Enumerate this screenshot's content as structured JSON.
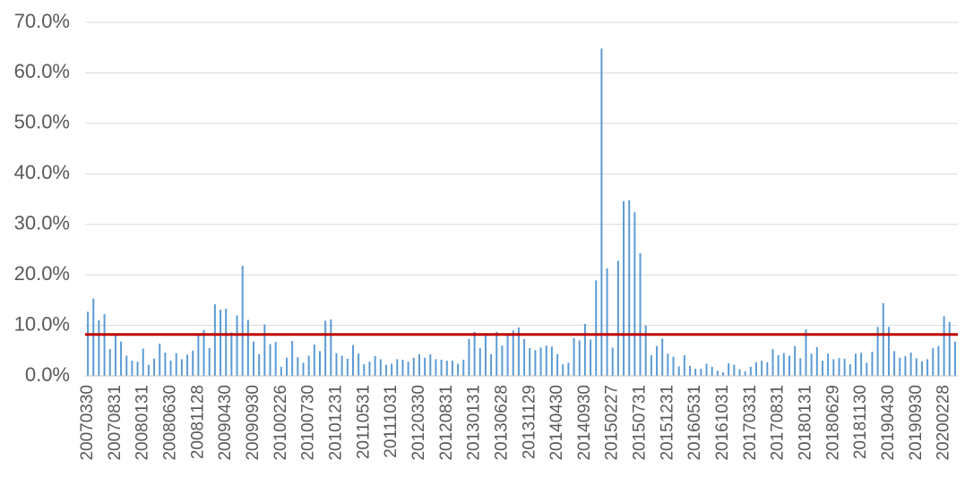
{
  "chart_data": {
    "type": "bar",
    "categories": [
      "20070330",
      null,
      null,
      null,
      null,
      "20070831",
      null,
      null,
      null,
      null,
      "20080131",
      null,
      null,
      null,
      null,
      "20080630",
      null,
      null,
      null,
      null,
      "20081128",
      null,
      null,
      null,
      null,
      "20090430",
      null,
      null,
      null,
      null,
      "20090930",
      null,
      null,
      null,
      null,
      "20100226",
      null,
      null,
      null,
      null,
      "20100730",
      null,
      null,
      null,
      null,
      "20101231",
      null,
      null,
      null,
      null,
      "20110531",
      null,
      null,
      null,
      null,
      "20111031",
      null,
      null,
      null,
      null,
      "20120330",
      null,
      null,
      null,
      null,
      "20120831",
      null,
      null,
      null,
      null,
      "20130131",
      null,
      null,
      null,
      null,
      "20130628",
      null,
      null,
      null,
      null,
      "20131129",
      null,
      null,
      null,
      null,
      "20140430",
      null,
      null,
      null,
      null,
      "20140930",
      null,
      null,
      null,
      null,
      "20150227",
      null,
      null,
      null,
      null,
      "20150731",
      null,
      null,
      null,
      null,
      "20151231",
      null,
      null,
      null,
      null,
      "20160531",
      null,
      null,
      null,
      null,
      "20161031",
      null,
      null,
      null,
      null,
      "20170331",
      null,
      null,
      null,
      null,
      "20170831",
      null,
      null,
      null,
      null,
      "20180131",
      null,
      null,
      null,
      null,
      "20180629",
      null,
      null,
      null,
      null,
      "20181130",
      null,
      null,
      null,
      null,
      "20190430",
      null,
      null,
      null,
      null,
      "20190930",
      null,
      null,
      null,
      null,
      "20200228",
      null,
      null
    ],
    "values": [
      12.7,
      15.3,
      11.0,
      12.2,
      5.3,
      8.0,
      6.8,
      4.0,
      3.0,
      2.8,
      5.4,
      2.2,
      3.4,
      6.4,
      4.6,
      3.0,
      4.5,
      3.3,
      4.2,
      5.0,
      8.0,
      9.1,
      5.5,
      14.2,
      13.1,
      13.3,
      8.6,
      12.0,
      21.8,
      11.1,
      6.8,
      4.3,
      10.2,
      6.3,
      6.7,
      1.8,
      3.6,
      6.9,
      3.7,
      2.6,
      4.0,
      6.2,
      4.9,
      10.9,
      11.2,
      4.5,
      4.0,
      3.4,
      6.1,
      4.4,
      2.3,
      2.8,
      3.9,
      3.3,
      2.2,
      2.4,
      3.3,
      3.2,
      2.8,
      3.6,
      4.3,
      3.6,
      4.3,
      3.3,
      3.2,
      3.0,
      3.0,
      2.4,
      3.2,
      7.3,
      8.7,
      5.5,
      8.0,
      4.3,
      8.7,
      6.0,
      8.0,
      9.0,
      9.6,
      7.3,
      5.5,
      5.1,
      5.6,
      6.0,
      5.8,
      4.3,
      2.3,
      2.6,
      7.5,
      7.0,
      10.3,
      7.2,
      18.9,
      64.8,
      21.3,
      5.6,
      22.8,
      34.6,
      34.8,
      32.4,
      24.3,
      10.0,
      4.1,
      5.9,
      7.4,
      4.4,
      3.8,
      1.9,
      4.1,
      2.0,
      1.4,
      1.4,
      2.4,
      1.8,
      1.0,
      0.7,
      2.5,
      2.2,
      1.3,
      0.9,
      1.8,
      2.7,
      3.0,
      2.7,
      5.3,
      4.1,
      4.5,
      4.0,
      5.9,
      3.5,
      9.2,
      4.4,
      5.7,
      3.0,
      4.4,
      3.3,
      3.5,
      3.4,
      2.3,
      4.4,
      4.6,
      2.6,
      4.8,
      9.7,
      14.4,
      9.7,
      4.9,
      3.6,
      3.9,
      4.6,
      3.5,
      2.9,
      3.3,
      5.5,
      5.9,
      11.8,
      10.7,
      6.8
    ],
    "color": "#5b9bd5",
    "reference_line": {
      "value": 8.2,
      "color": "#c00000"
    },
    "ylim": [
      0,
      70
    ],
    "yticks": [
      {
        "value": 0,
        "label": "0.0%"
      },
      {
        "value": 10,
        "label": "10.0%"
      },
      {
        "value": 20,
        "label": "20.0%"
      },
      {
        "value": 30,
        "label": "30.0%"
      },
      {
        "value": 40,
        "label": "40.0%"
      },
      {
        "value": 50,
        "label": "50.0%"
      },
      {
        "value": 60,
        "label": "60.0%"
      },
      {
        "value": 70,
        "label": "70.0%"
      }
    ],
    "grid": true
  }
}
